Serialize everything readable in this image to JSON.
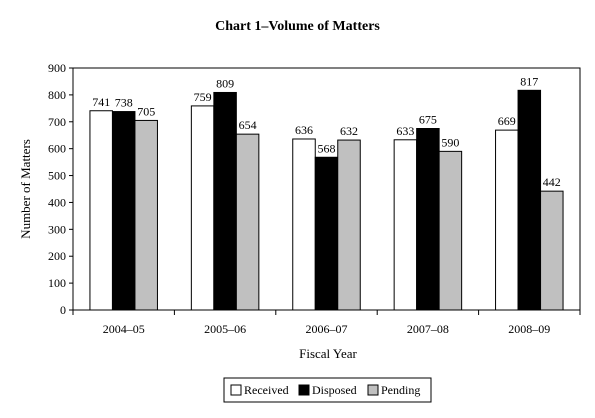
{
  "chart_data": {
    "type": "bar",
    "title": "Chart 1–Volume of Matters",
    "xlabel": "Fiscal Year",
    "ylabel": "Number of Matters",
    "categories": [
      "2004–05",
      "2005–06",
      "2006–07",
      "2007–08",
      "2008–09"
    ],
    "series": [
      {
        "name": "Received",
        "values": [
          741,
          759,
          636,
          633,
          669
        ],
        "color": "#ffffff"
      },
      {
        "name": "Disposed",
        "values": [
          738,
          809,
          568,
          675,
          817
        ],
        "color": "#000000"
      },
      {
        "name": "Pending",
        "values": [
          705,
          654,
          632,
          590,
          442
        ],
        "color": "#c0c0c0"
      }
    ],
    "ylim": [
      0,
      900
    ],
    "yticks": [
      "0",
      "100",
      "200",
      "300",
      "400",
      "500",
      "600",
      "700",
      "800",
      "900"
    ],
    "grid": false,
    "legend_position": "bottom"
  }
}
